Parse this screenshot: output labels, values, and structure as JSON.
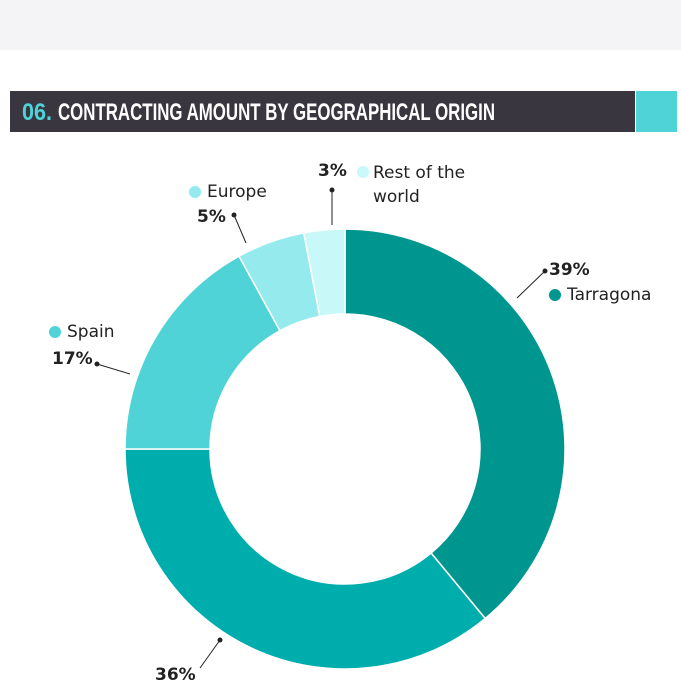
{
  "chart_data": {
    "type": "donut",
    "title_number": "06.",
    "title": "CONTRACTING AMOUNT BY GEOGRAPHICAL ORIGIN",
    "categories": [
      "Tarragona",
      null,
      "Spain",
      "Europe",
      "Rest of the world"
    ],
    "values": [
      39,
      36,
      17,
      5,
      3
    ],
    "value_labels": [
      "39%",
      "36%",
      "17%",
      "5%",
      "3%"
    ],
    "colors": [
      "#009690",
      "#00adad",
      "#4fd3d6",
      "#94eaec",
      "#c9f8f8"
    ]
  }
}
